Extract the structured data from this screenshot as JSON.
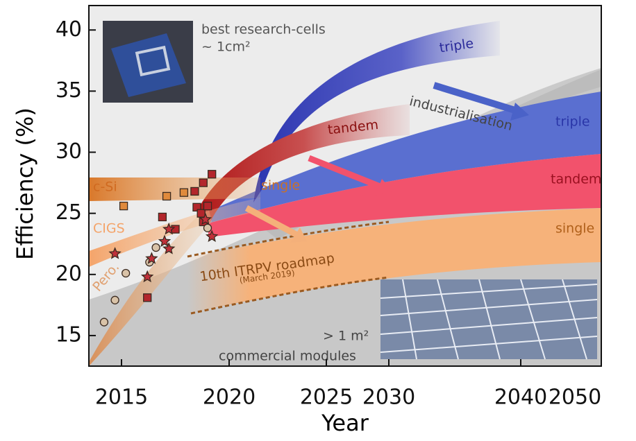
{
  "chart_data": {
    "type": "scatter",
    "xlabel": "Year",
    "ylabel": "Efficiency (%)",
    "xlim": [
      2013.5,
      2050
    ],
    "xticks": [
      2015,
      2020,
      2025,
      2030,
      2040,
      2050
    ],
    "ylim": [
      12.5,
      42
    ],
    "yticks": [
      15,
      20,
      25,
      30,
      35,
      40
    ],
    "series": [
      {
        "marker": "square",
        "color": "#e08a3c",
        "x": [
          2015.1,
          2017.1,
          2017.9
        ],
        "values": [
          25.6,
          26.4,
          26.7
        ]
      },
      {
        "marker": "square",
        "color": "#b3262c",
        "x": [
          2016.2,
          2016.9,
          2017.5,
          2018.4,
          2018.5,
          2018.7,
          2018.8,
          2019.0,
          2019.2,
          2018.8
        ],
        "values": [
          18.1,
          24.7,
          23.7,
          26.8,
          25.5,
          25.0,
          27.5,
          25.6,
          28.2,
          24.3
        ]
      },
      {
        "marker": "circle",
        "color": "#d9c3a8",
        "x": [
          2014.2,
          2014.7,
          2015.2,
          2016.3,
          2016.6,
          2019.0
        ],
        "values": [
          16.1,
          17.9,
          20.1,
          21.0,
          22.2,
          23.8
        ]
      },
      {
        "marker": "star",
        "color": "#c0303a",
        "x": [
          2014.7,
          2016.2,
          2016.4,
          2017.2,
          2017.2,
          2018.9,
          2019.2,
          2017.0
        ],
        "values": [
          21.7,
          19.8,
          21.3,
          23.7,
          22.1,
          24.5,
          23.1,
          22.7
        ]
      }
    ],
    "annotations": {
      "research": "best research-cells",
      "research_size": "~ 1cm²",
      "research_triple": "triple",
      "research_tandem": "tandem",
      "research_single": "single",
      "industrialisation": "industrialisation",
      "module_triple": "triple",
      "module_tandem": "tandem",
      "module_single": "single",
      "csi": "c-Si",
      "cigs": "CIGS",
      "pero": "Pero.",
      "roadmap": "10th ITRPV roadmap",
      "roadmap_date": "(March 2019)",
      "module_size": "> 1 m²",
      "modules": "commercial modules"
    }
  }
}
